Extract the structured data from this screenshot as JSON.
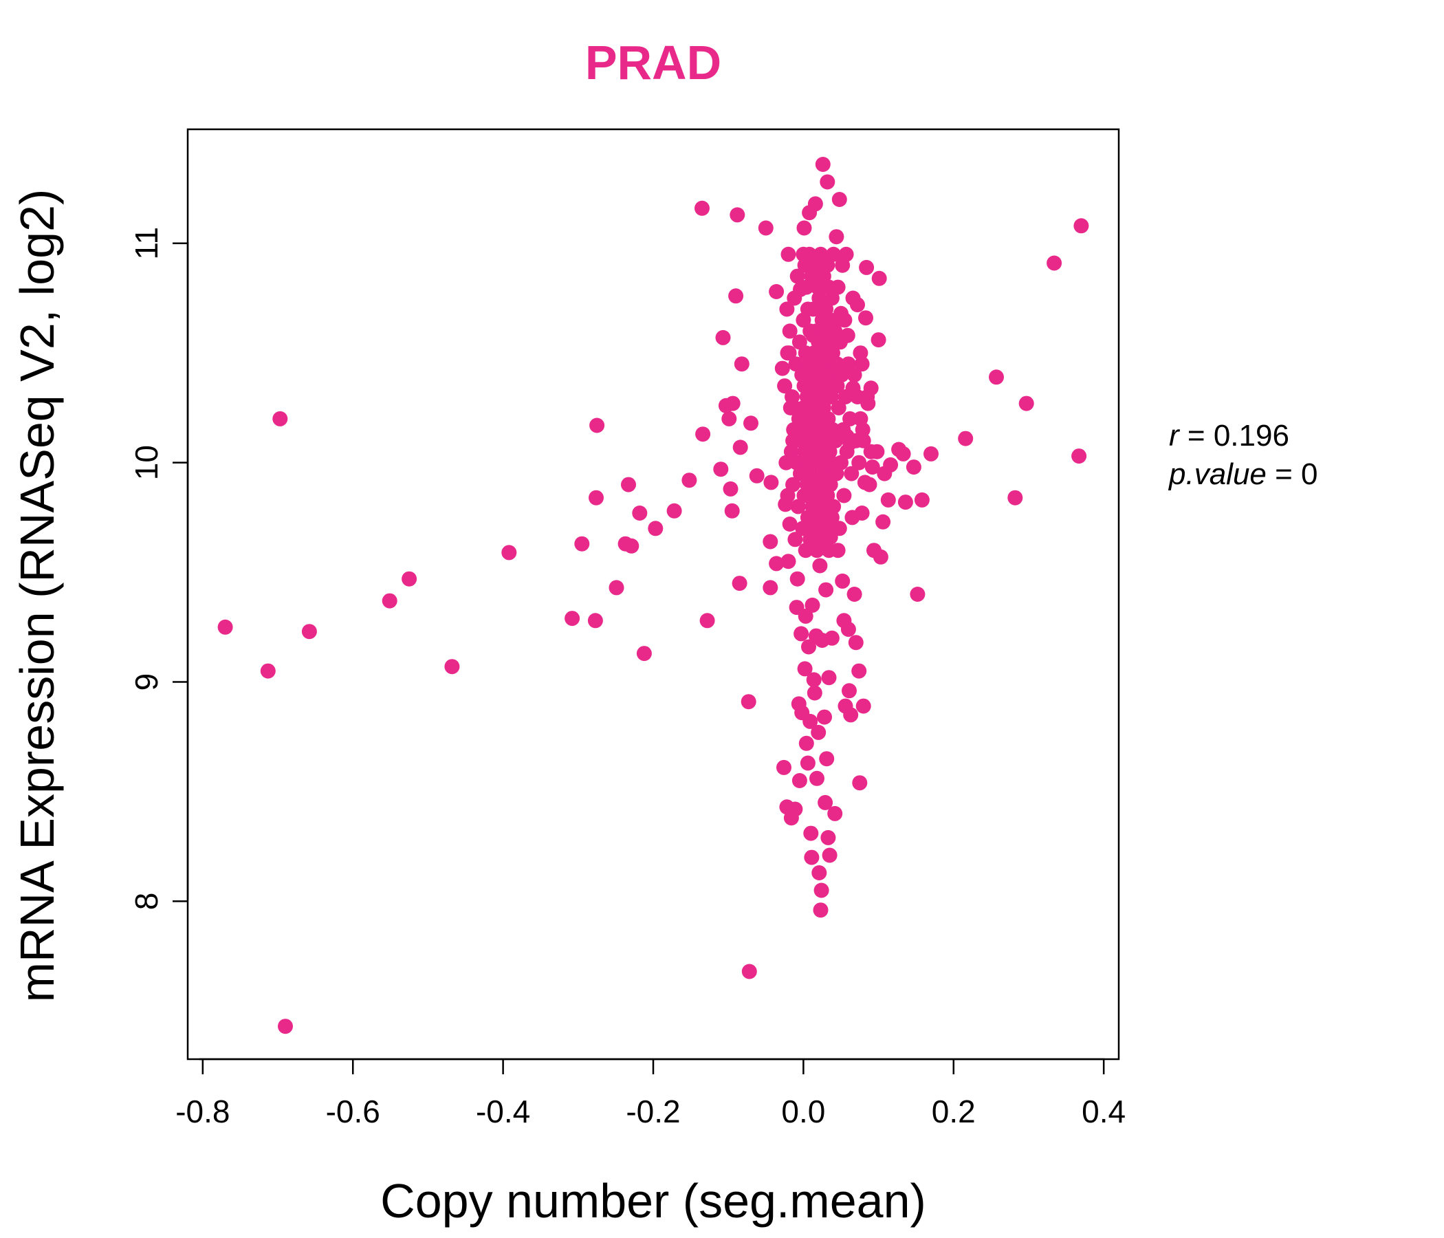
{
  "colors": {
    "accent": "#E8298A",
    "axis": "#000000",
    "background": "#FFFFFF"
  },
  "chart_data": {
    "type": "scatter",
    "title": "PRAD",
    "xlabel": "Copy number (seg.mean)",
    "ylabel": "mRNA Expression (RNASeq V2, log2)",
    "xlim": [
      -0.82,
      0.42
    ],
    "ylim": [
      7.28,
      11.52
    ],
    "xticks": [
      "-0.8",
      "-0.6",
      "-0.4",
      "-0.2",
      "0.0",
      "0.2",
      "0.4"
    ],
    "yticks": [
      "8",
      "9",
      "10",
      "11"
    ],
    "annotation": {
      "r_label": "r",
      "r_value": "0.196",
      "p_label": "p.value",
      "p_value": "0"
    },
    "grid": false,
    "legend": "none",
    "points": [
      [
        -0.77,
        9.25
      ],
      [
        -0.713,
        9.05
      ],
      [
        -0.697,
        10.2
      ],
      [
        -0.69,
        7.43
      ],
      [
        -0.658,
        9.23
      ],
      [
        -0.551,
        9.37
      ],
      [
        -0.525,
        9.47
      ],
      [
        -0.468,
        9.07
      ],
      [
        -0.392,
        9.59
      ],
      [
        -0.308,
        9.29
      ],
      [
        -0.295,
        9.63
      ],
      [
        -0.277,
        9.28
      ],
      [
        -0.276,
        9.84
      ],
      [
        -0.275,
        10.17
      ],
      [
        -0.249,
        9.43
      ],
      [
        -0.237,
        9.63
      ],
      [
        -0.233,
        9.9
      ],
      [
        -0.229,
        9.62
      ],
      [
        -0.218,
        9.77
      ],
      [
        -0.212,
        9.13
      ],
      [
        -0.197,
        9.7
      ],
      [
        -0.172,
        9.78
      ],
      [
        -0.152,
        9.92
      ],
      [
        -0.134,
        10.13
      ],
      [
        -0.135,
        11.16
      ],
      [
        -0.128,
        9.28
      ],
      [
        -0.11,
        9.97
      ],
      [
        -0.107,
        10.57
      ],
      [
        -0.103,
        10.26
      ],
      [
        -0.099,
        10.2
      ],
      [
        -0.097,
        9.88
      ],
      [
        -0.095,
        9.78
      ],
      [
        -0.094,
        10.27
      ],
      [
        -0.09,
        10.76
      ],
      [
        -0.088,
        11.13
      ],
      [
        -0.085,
        9.45
      ],
      [
        -0.084,
        10.07
      ],
      [
        -0.082,
        10.45
      ],
      [
        -0.073,
        8.91
      ],
      [
        -0.072,
        7.68
      ],
      [
        -0.07,
        10.18
      ],
      [
        -0.062,
        9.94
      ],
      [
        -0.05,
        11.07
      ],
      [
        -0.044,
        9.64
      ],
      [
        -0.044,
        9.43
      ],
      [
        -0.043,
        9.91
      ],
      [
        -0.036,
        10.78
      ],
      [
        -0.036,
        9.54
      ],
      [
        -0.028,
        10.43
      ],
      [
        -0.026,
        8.61
      ],
      [
        -0.024,
        9.81
      ],
      [
        -0.022,
        8.43
      ],
      [
        -0.021,
        10.5
      ],
      [
        -0.02,
        9.55
      ],
      [
        -0.018,
        9.72
      ],
      [
        -0.016,
        8.38
      ],
      [
        -0.014,
        10.1
      ],
      [
        -0.012,
        10.25
      ],
      [
        -0.011,
        8.42
      ],
      [
        -0.009,
        9.34
      ],
      [
        -0.008,
        9.47
      ],
      [
        -0.006,
        8.9
      ],
      [
        -0.005,
        8.55
      ],
      [
        -0.004,
        10.79
      ],
      [
        -0.003,
        9.22
      ],
      [
        -0.002,
        8.86
      ],
      [
        0.0,
        10.95
      ],
      [
        0.001,
        11.07
      ],
      [
        0.002,
        9.06
      ],
      [
        0.003,
        9.3
      ],
      [
        0.004,
        8.72
      ],
      [
        0.005,
        10.43
      ],
      [
        0.006,
        8.63
      ],
      [
        0.007,
        9.16
      ],
      [
        0.008,
        11.14
      ],
      [
        0.009,
        8.82
      ],
      [
        0.01,
        8.31
      ],
      [
        0.011,
        8.2
      ],
      [
        0.012,
        9.35
      ],
      [
        0.013,
        10.58
      ],
      [
        0.014,
        9.01
      ],
      [
        0.015,
        8.95
      ],
      [
        0.016,
        11.18
      ],
      [
        0.017,
        9.21
      ],
      [
        0.018,
        8.56
      ],
      [
        0.019,
        10.37
      ],
      [
        0.02,
        8.77
      ],
      [
        0.021,
        8.13
      ],
      [
        0.022,
        9.53
      ],
      [
        0.023,
        7.96
      ],
      [
        0.024,
        8.05
      ],
      [
        0.025,
        9.19
      ],
      [
        0.026,
        11.36
      ],
      [
        0.027,
        9.92
      ],
      [
        0.028,
        8.84
      ],
      [
        0.029,
        8.45
      ],
      [
        0.03,
        9.42
      ],
      [
        0.031,
        8.65
      ],
      [
        0.032,
        11.28
      ],
      [
        0.033,
        8.29
      ],
      [
        0.034,
        9.02
      ],
      [
        0.035,
        8.21
      ],
      [
        0.036,
        9.66
      ],
      [
        0.038,
        9.2
      ],
      [
        0.04,
        10.63
      ],
      [
        0.042,
        8.4
      ],
      [
        0.044,
        11.03
      ],
      [
        0.045,
        10.35
      ],
      [
        0.046,
        9.6
      ],
      [
        0.048,
        11.2
      ],
      [
        0.05,
        10.68
      ],
      [
        0.052,
        9.46
      ],
      [
        0.054,
        9.28
      ],
      [
        0.056,
        8.89
      ],
      [
        0.057,
        10.95
      ],
      [
        0.058,
        10.12
      ],
      [
        0.059,
        10.58
      ],
      [
        0.06,
        9.24
      ],
      [
        0.061,
        8.96
      ],
      [
        0.062,
        10.09
      ],
      [
        0.063,
        8.85
      ],
      [
        0.065,
        9.75
      ],
      [
        0.066,
        10.34
      ],
      [
        0.068,
        9.4
      ],
      [
        0.07,
        9.18
      ],
      [
        0.072,
        10.72
      ],
      [
        0.074,
        9.05
      ],
      [
        0.075,
        8.54
      ],
      [
        0.076,
        10.5
      ],
      [
        0.078,
        9.77
      ],
      [
        0.079,
        10.15
      ],
      [
        0.08,
        8.89
      ],
      [
        0.082,
        9.91
      ],
      [
        0.083,
        10.66
      ],
      [
        0.084,
        10.89
      ],
      [
        0.086,
        10.27
      ],
      [
        0.088,
        9.9
      ],
      [
        0.09,
        10.34
      ],
      [
        0.092,
        9.98
      ],
      [
        0.094,
        9.6
      ],
      [
        0.098,
        10.05
      ],
      [
        0.1,
        10.56
      ],
      [
        0.101,
        10.84
      ],
      [
        0.103,
        9.57
      ],
      [
        0.106,
        9.73
      ],
      [
        0.108,
        9.95
      ],
      [
        0.113,
        9.83
      ],
      [
        0.116,
        9.99
      ],
      [
        0.127,
        10.06
      ],
      [
        0.133,
        10.04
      ],
      [
        0.136,
        9.82
      ],
      [
        0.147,
        9.98
      ],
      [
        0.152,
        9.4
      ],
      [
        0.158,
        9.83
      ],
      [
        0.17,
        10.04
      ],
      [
        0.216,
        10.11
      ],
      [
        0.257,
        10.39
      ],
      [
        0.282,
        9.84
      ],
      [
        0.297,
        10.27
      ],
      [
        0.334,
        10.91
      ],
      [
        0.367,
        10.03
      ],
      [
        0.37,
        11.08
      ],
      [
        -0.02,
        10.95
      ],
      [
        -0.018,
        10.6
      ],
      [
        -0.016,
        10.05
      ],
      [
        -0.015,
        10.3
      ],
      [
        -0.014,
        9.9
      ],
      [
        -0.013,
        10.15
      ],
      [
        -0.012,
        10.75
      ],
      [
        -0.011,
        9.65
      ],
      [
        -0.01,
        10.45
      ],
      [
        -0.009,
        10.0
      ],
      [
        -0.008,
        10.85
      ],
      [
        -0.007,
        9.8
      ],
      [
        -0.006,
        10.2
      ],
      [
        -0.005,
        10.55
      ],
      [
        -0.004,
        9.95
      ],
      [
        -0.003,
        10.1
      ],
      [
        -0.002,
        10.4
      ],
      [
        -0.001,
        9.7
      ],
      [
        0.0,
        10.25
      ],
      [
        0.0,
        10.65
      ],
      [
        0.001,
        9.85
      ],
      [
        0.001,
        10.35
      ],
      [
        0.002,
        10.9
      ],
      [
        0.002,
        10.05
      ],
      [
        0.003,
        9.6
      ],
      [
        0.003,
        10.5
      ],
      [
        0.004,
        10.15
      ],
      [
        0.004,
        10.8
      ],
      [
        0.005,
        9.9
      ],
      [
        0.005,
        10.3
      ],
      [
        0.006,
        10.7
      ],
      [
        0.006,
        9.75
      ],
      [
        0.007,
        10.45
      ],
      [
        0.007,
        10.0
      ],
      [
        0.008,
        10.95
      ],
      [
        0.008,
        10.2
      ],
      [
        0.009,
        9.65
      ],
      [
        0.009,
        10.6
      ],
      [
        0.01,
        10.1
      ],
      [
        0.01,
        9.95
      ],
      [
        0.011,
        10.4
      ],
      [
        0.011,
        10.85
      ],
      [
        0.012,
        9.8
      ],
      [
        0.012,
        10.25
      ],
      [
        0.013,
        10.7
      ],
      [
        0.013,
        10.05
      ],
      [
        0.014,
        9.7
      ],
      [
        0.014,
        10.5
      ],
      [
        0.015,
        10.15
      ],
      [
        0.015,
        10.9
      ],
      [
        0.016,
        9.85
      ],
      [
        0.016,
        10.35
      ],
      [
        0.017,
        10.6
      ],
      [
        0.017,
        10.0
      ],
      [
        0.018,
        9.6
      ],
      [
        0.018,
        10.45
      ],
      [
        0.019,
        10.8
      ],
      [
        0.019,
        10.2
      ],
      [
        0.02,
        9.9
      ],
      [
        0.02,
        10.55
      ],
      [
        0.021,
        10.1
      ],
      [
        0.021,
        10.75
      ],
      [
        0.022,
        9.75
      ],
      [
        0.022,
        10.3
      ],
      [
        0.023,
        10.95
      ],
      [
        0.023,
        10.05
      ],
      [
        0.024,
        9.65
      ],
      [
        0.024,
        10.4
      ],
      [
        0.025,
        10.65
      ],
      [
        0.025,
        10.15
      ],
      [
        0.026,
        9.8
      ],
      [
        0.026,
        10.5
      ],
      [
        0.027,
        10.85
      ],
      [
        0.027,
        10.25
      ],
      [
        0.028,
        9.95
      ],
      [
        0.028,
        10.6
      ],
      [
        0.029,
        10.0
      ],
      [
        0.029,
        10.35
      ],
      [
        0.03,
        10.7
      ],
      [
        0.03,
        9.7
      ],
      [
        0.031,
        10.45
      ],
      [
        0.031,
        10.1
      ],
      [
        0.032,
        10.9
      ],
      [
        0.032,
        9.85
      ],
      [
        0.033,
        10.2
      ],
      [
        0.033,
        10.55
      ],
      [
        0.034,
        9.6
      ],
      [
        0.034,
        10.8
      ],
      [
        0.035,
        10.05
      ],
      [
        0.035,
        10.4
      ],
      [
        0.036,
        9.9
      ],
      [
        0.036,
        10.65
      ],
      [
        0.037,
        10.3
      ],
      [
        0.037,
        10.0
      ],
      [
        0.038,
        10.75
      ],
      [
        0.038,
        9.75
      ],
      [
        0.039,
        10.5
      ],
      [
        0.039,
        10.15
      ],
      [
        0.04,
        10.95
      ],
      [
        0.04,
        9.8
      ],
      [
        0.041,
        10.35
      ],
      [
        0.042,
        10.6
      ],
      [
        0.043,
        10.1
      ],
      [
        0.044,
        9.95
      ],
      [
        0.045,
        10.45
      ],
      [
        0.046,
        10.8
      ],
      [
        0.047,
        10.25
      ],
      [
        0.048,
        9.7
      ],
      [
        0.049,
        10.55
      ],
      [
        0.05,
        10.0
      ],
      [
        0.051,
        10.4
      ],
      [
        0.052,
        10.9
      ],
      [
        0.053,
        10.15
      ],
      [
        0.054,
        9.85
      ],
      [
        0.055,
        10.65
      ],
      [
        0.056,
        10.3
      ],
      [
        0.058,
        10.05
      ],
      [
        0.06,
        10.45
      ],
      [
        0.062,
        10.2
      ],
      [
        0.064,
        9.95
      ],
      [
        0.066,
        10.75
      ],
      [
        0.068,
        10.4
      ],
      [
        0.07,
        10.1
      ],
      [
        0.072,
        10.3
      ],
      [
        -0.025,
        10.35
      ],
      [
        -0.023,
        10.0
      ],
      [
        -0.022,
        10.7
      ],
      [
        -0.021,
        9.85
      ],
      [
        -0.019,
        10.5
      ],
      [
        -0.017,
        10.25
      ],
      [
        0.074,
        10.0
      ],
      [
        0.076,
        10.2
      ],
      [
        0.078,
        10.45
      ],
      [
        0.08,
        10.1
      ],
      [
        0.085,
        10.3
      ],
      [
        0.09,
        10.05
      ]
    ]
  }
}
